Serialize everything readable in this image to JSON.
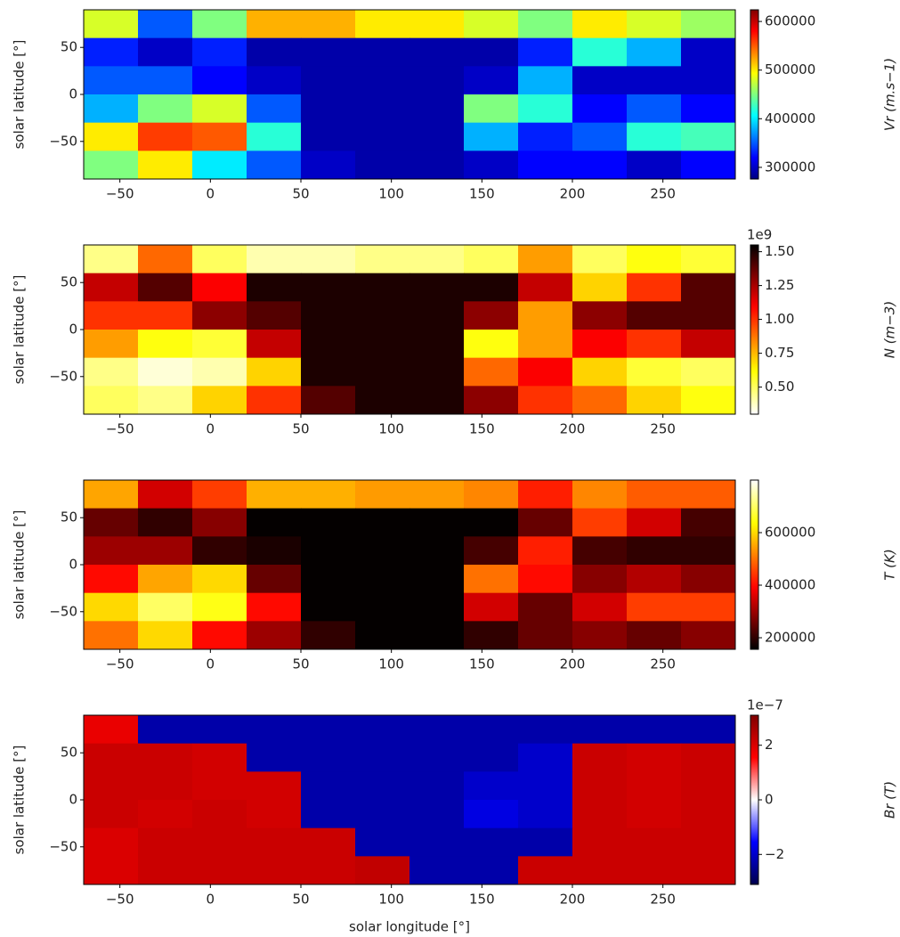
{
  "chart_data": [
    {
      "type": "heatmap",
      "cmap": "jet",
      "ylabel": "solar latitude [°]",
      "xlim": [
        -70,
        290
      ],
      "ylim": [
        -90,
        90
      ],
      "xticks": [
        {
          "value": -50,
          "label": "−50"
        },
        0,
        50,
        100,
        150,
        200,
        250
      ],
      "yticks": [
        {
          "value": -50,
          "label": "−50"
        },
        0,
        50
      ],
      "z": [
        [
          480000,
          350000,
          450000,
          520000,
          520000,
          500000,
          500000,
          480000,
          450000,
          500000,
          480000,
          460000
        ],
        [
          330000,
          300000,
          330000,
          290000,
          290000,
          290000,
          290000,
          290000,
          330000,
          420000,
          380000,
          300000
        ],
        [
          350000,
          350000,
          320000,
          300000,
          290000,
          290000,
          290000,
          300000,
          380000,
          300000,
          300000,
          300000
        ],
        [
          380000,
          450000,
          480000,
          350000,
          290000,
          290000,
          290000,
          450000,
          420000,
          320000,
          350000,
          320000
        ],
        [
          500000,
          560000,
          550000,
          420000,
          290000,
          290000,
          290000,
          380000,
          330000,
          350000,
          420000,
          430000
        ],
        [
          450000,
          500000,
          400000,
          350000,
          300000,
          290000,
          290000,
          300000,
          320000,
          320000,
          300000,
          320000
        ]
      ],
      "colorbar": {
        "label": "Vr (m.s−1)",
        "lim": [
          276000,
          624000
        ],
        "ticks": [
          300000,
          400000,
          500000,
          600000
        ]
      }
    },
    {
      "type": "heatmap",
      "cmap": "hot_r",
      "ylabel": "solar latitude [°]",
      "xlim": [
        -70,
        290
      ],
      "ylim": [
        -90,
        90
      ],
      "xticks": [
        {
          "value": -50,
          "label": "−50"
        },
        0,
        50,
        100,
        150,
        200,
        250
      ],
      "yticks": [
        {
          "value": -50,
          "label": "−50"
        },
        0,
        50
      ],
      "z": [
        [
          0.45,
          0.9,
          0.5,
          0.4,
          0.4,
          0.45,
          0.45,
          0.5,
          0.8,
          0.5,
          0.6,
          0.55
        ],
        [
          1.2,
          1.4,
          1.1,
          1.5,
          1.5,
          1.5,
          1.5,
          1.5,
          1.2,
          0.7,
          1.0,
          1.4
        ],
        [
          1.0,
          1.0,
          1.3,
          1.4,
          1.5,
          1.5,
          1.5,
          1.3,
          0.8,
          1.3,
          1.4,
          1.4
        ],
        [
          0.8,
          0.6,
          0.55,
          1.2,
          1.5,
          1.5,
          1.5,
          0.6,
          0.8,
          1.1,
          1.0,
          1.2
        ],
        [
          0.45,
          0.35,
          0.4,
          0.7,
          1.5,
          1.5,
          1.5,
          0.9,
          1.1,
          0.7,
          0.55,
          0.5
        ],
        [
          0.5,
          0.45,
          0.7,
          1.0,
          1.4,
          1.5,
          1.5,
          1.3,
          1.0,
          0.9,
          0.7,
          0.6
        ]
      ],
      "colorbar": {
        "label": "N (m−3)",
        "lim": [
          0.3,
          1.55
        ],
        "offset": "1e9",
        "ticks": [
          {
            "value": 0.5,
            "label": "0.50"
          },
          {
            "value": 0.75,
            "label": "0.75"
          },
          {
            "value": 1,
            "label": "1.00"
          },
          {
            "value": 1.25,
            "label": "1.25"
          },
          {
            "value": 1.5,
            "label": "1.50"
          }
        ]
      }
    },
    {
      "type": "heatmap",
      "cmap": "hot",
      "ylabel": "solar latitude [°]",
      "xlim": [
        -70,
        290
      ],
      "ylim": [
        -90,
        90
      ],
      "xticks": [
        {
          "value": -50,
          "label": "−50"
        },
        0,
        50,
        100,
        150,
        200,
        250
      ],
      "yticks": [
        {
          "value": -50,
          "label": "−50"
        },
        0,
        50
      ],
      "z": [
        [
          550000,
          350000,
          450000,
          560000,
          560000,
          540000,
          540000,
          520000,
          420000,
          520000,
          480000,
          480000
        ],
        [
          250000,
          200000,
          280000,
          160000,
          160000,
          160000,
          160000,
          160000,
          250000,
          450000,
          350000,
          220000
        ],
        [
          300000,
          300000,
          200000,
          180000,
          160000,
          160000,
          160000,
          220000,
          420000,
          220000,
          200000,
          200000
        ],
        [
          400000,
          550000,
          600000,
          250000,
          160000,
          160000,
          160000,
          500000,
          400000,
          280000,
          320000,
          280000
        ],
        [
          600000,
          700000,
          650000,
          400000,
          160000,
          160000,
          160000,
          350000,
          250000,
          350000,
          450000,
          450000
        ],
        [
          500000,
          600000,
          400000,
          300000,
          200000,
          160000,
          160000,
          200000,
          250000,
          280000,
          250000,
          280000
        ]
      ],
      "colorbar": {
        "label": "T (K)",
        "lim": [
          156000,
          800000
        ],
        "ticks": [
          200000,
          400000,
          600000
        ]
      }
    },
    {
      "type": "heatmap",
      "cmap": "seismic",
      "ylabel": "solar latitude [°]",
      "xlabel": "solar longitude [°]",
      "xlim": [
        -70,
        290
      ],
      "ylim": [
        -90,
        90
      ],
      "xticks": [
        {
          "value": -50,
          "label": "−50"
        },
        0,
        50,
        100,
        150,
        200,
        250
      ],
      "yticks": [
        {
          "value": -50,
          "label": "−50"
        },
        0,
        50
      ],
      "z": [
        [
          1.8,
          -2.3,
          -2.3,
          -2.3,
          -2.3,
          -2.3,
          -2.3,
          -2.3,
          -2.3,
          -2.3,
          -2.3,
          -2.3
        ],
        [
          2.2,
          2.2,
          2.1,
          -2.3,
          -2.3,
          -2.3,
          -2.3,
          -2.3,
          -2.0,
          2.2,
          2.1,
          2.2
        ],
        [
          2.2,
          2.2,
          2.1,
          2.1,
          -2.3,
          -2.3,
          -2.3,
          -2.0,
          -2.0,
          2.2,
          2.1,
          2.2
        ],
        [
          2.2,
          2.1,
          2.2,
          2.1,
          -2.3,
          -2.3,
          -2.3,
          -1.8,
          -2.0,
          2.2,
          2.1,
          2.2
        ],
        [
          2.0,
          2.2,
          2.2,
          2.2,
          2.2,
          -2.3,
          -2.3,
          -2.3,
          -2.3,
          2.2,
          2.2,
          2.2
        ],
        [
          2.0,
          2.2,
          2.2,
          2.2,
          2.2,
          2.3,
          -2.3,
          -2.3,
          2.2,
          2.2,
          2.2,
          2.2
        ]
      ],
      "colorbar": {
        "label": "Br (T)",
        "lim": [
          -3.1,
          3.1
        ],
        "offset": "1e−7",
        "ticks": [
          {
            "value": -2,
            "label": "−2"
          },
          0,
          2
        ]
      }
    }
  ]
}
